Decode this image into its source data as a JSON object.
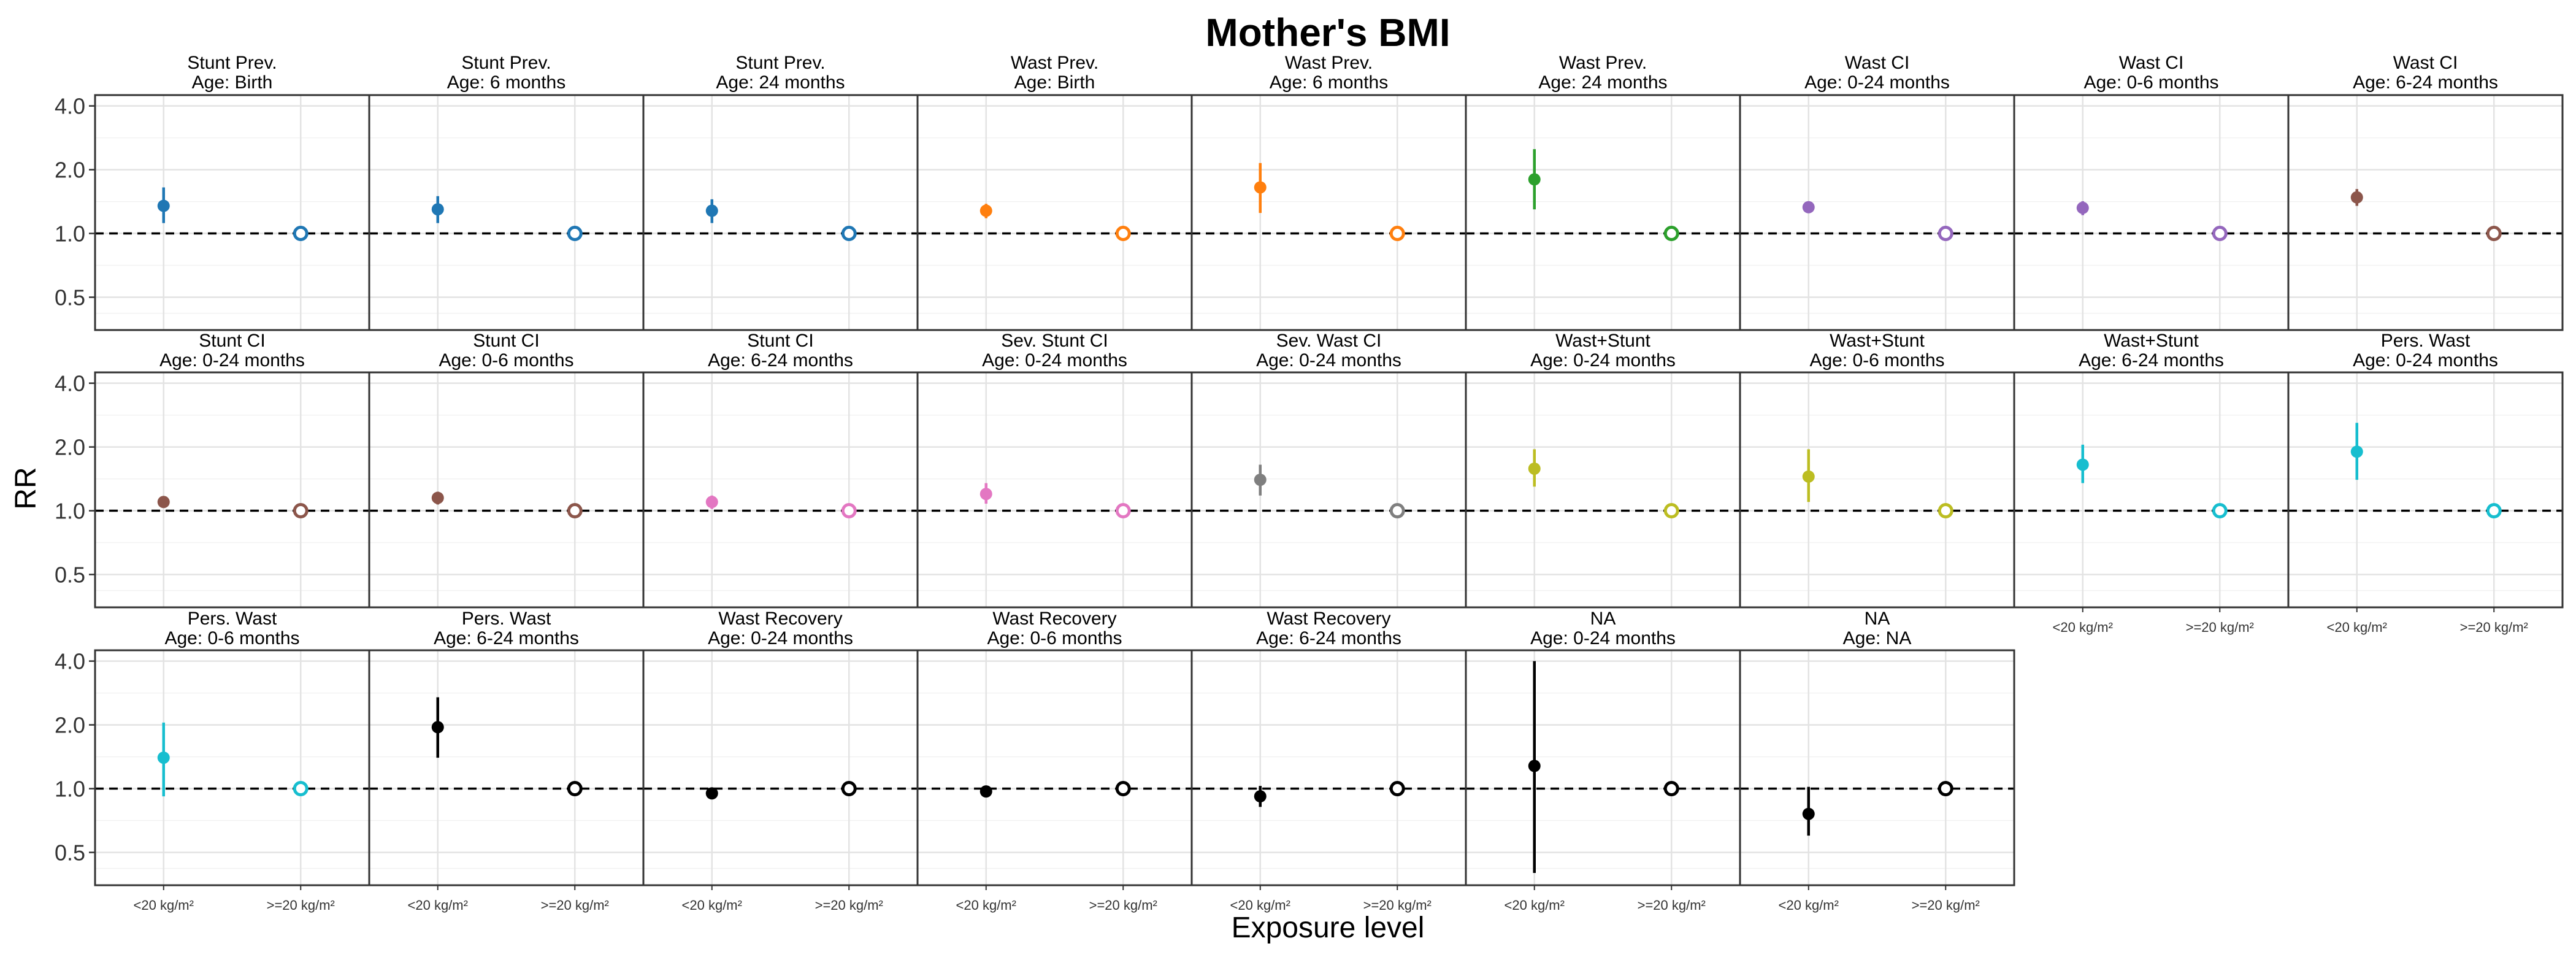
{
  "chart_data": {
    "type": "scatter",
    "title": "Mother's BMI",
    "xlabel": "Exposure level",
    "ylabel": "RR",
    "y_scale": "log",
    "ylim": [
      0.35,
      4.5
    ],
    "yticks": [
      0.5,
      1.0,
      2.0,
      4.0
    ],
    "ytick_labels": [
      "0.5",
      "1.0",
      "2.0",
      "4.0"
    ],
    "reference_line": 1.0,
    "categories": [
      "<20 kg/m²",
      ">=20 kg/m²"
    ],
    "grid": true,
    "panels": [
      {
        "strip": [
          "Stunt Prev.",
          "Age: Birth"
        ],
        "color": "#1F77B4",
        "rr": 1.35,
        "lo": 1.12,
        "hi": 1.65
      },
      {
        "strip": [
          "Stunt Prev.",
          "Age: 6 months"
        ],
        "color": "#1F77B4",
        "rr": 1.3,
        "lo": 1.12,
        "hi": 1.5
      },
      {
        "strip": [
          "Stunt Prev.",
          "Age: 24 months"
        ],
        "color": "#1F77B4",
        "rr": 1.28,
        "lo": 1.12,
        "hi": 1.45
      },
      {
        "strip": [
          "Wast Prev.",
          "Age: Birth"
        ],
        "color": "#FF7F0E",
        "rr": 1.28,
        "lo": 1.18,
        "hi": 1.38
      },
      {
        "strip": [
          "Wast Prev.",
          "Age: 6 months"
        ],
        "color": "#FF7F0E",
        "rr": 1.65,
        "lo": 1.25,
        "hi": 2.15
      },
      {
        "strip": [
          "Wast Prev.",
          "Age: 24 months"
        ],
        "color": "#2CA02C",
        "rr": 1.8,
        "lo": 1.3,
        "hi": 2.5
      },
      {
        "strip": [
          "Wast CI",
          "Age: 0-24 months"
        ],
        "color": "#9467BD",
        "rr": 1.33,
        "lo": 1.25,
        "hi": 1.42
      },
      {
        "strip": [
          "Wast CI",
          "Age: 0-6 months"
        ],
        "color": "#9467BD",
        "rr": 1.32,
        "lo": 1.22,
        "hi": 1.42
      },
      {
        "strip": [
          "Wast CI",
          "Age: 6-24 months"
        ],
        "color": "#8C564B",
        "rr": 1.48,
        "lo": 1.35,
        "hi": 1.62
      },
      {
        "strip": [
          "Stunt CI",
          "Age: 0-24 months"
        ],
        "color": "#8C564B",
        "rr": 1.1,
        "lo": 1.06,
        "hi": 1.14
      },
      {
        "strip": [
          "Stunt CI",
          "Age: 0-6 months"
        ],
        "color": "#8C564B",
        "rr": 1.15,
        "lo": 1.07,
        "hi": 1.23
      },
      {
        "strip": [
          "Stunt CI",
          "Age: 6-24 months"
        ],
        "color": "#E377C2",
        "rr": 1.1,
        "lo": 1.02,
        "hi": 1.18
      },
      {
        "strip": [
          "Sev. Stunt CI",
          "Age: 0-24 months"
        ],
        "color": "#E377C2",
        "rr": 1.2,
        "lo": 1.08,
        "hi": 1.35
      },
      {
        "strip": [
          "Sev. Wast CI",
          "Age: 0-24 months"
        ],
        "color": "#7F7F7F",
        "rr": 1.4,
        "lo": 1.18,
        "hi": 1.65
      },
      {
        "strip": [
          "Wast+Stunt",
          "Age: 0-24 months"
        ],
        "color": "#BCBD22",
        "rr": 1.58,
        "lo": 1.3,
        "hi": 1.95
      },
      {
        "strip": [
          "Wast+Stunt",
          "Age: 0-6 months"
        ],
        "color": "#BCBD22",
        "rr": 1.45,
        "lo": 1.1,
        "hi": 1.95
      },
      {
        "strip": [
          "Wast+Stunt",
          "Age: 6-24 months"
        ],
        "color": "#17BECF",
        "rr": 1.65,
        "lo": 1.35,
        "hi": 2.05
      },
      {
        "strip": [
          "Pers. Wast",
          "Age: 0-24 months"
        ],
        "color": "#17BECF",
        "rr": 1.9,
        "lo": 1.4,
        "hi": 2.6
      },
      {
        "strip": [
          "Pers. Wast",
          "Age: 0-6 months"
        ],
        "color": "#17BECF",
        "rr": 1.4,
        "lo": 0.92,
        "hi": 2.05
      },
      {
        "strip": [
          "Pers. Wast",
          "Age: 6-24 months"
        ],
        "color": "#000000",
        "rr": 1.95,
        "lo": 1.4,
        "hi": 2.7
      },
      {
        "strip": [
          "Wast Recovery",
          "Age: 0-24 months"
        ],
        "color": "#000000",
        "rr": 0.95,
        "lo": 0.92,
        "hi": 0.98
      },
      {
        "strip": [
          "Wast Recovery",
          "Age: 0-6 months"
        ],
        "color": "#000000",
        "rr": 0.97,
        "lo": 0.94,
        "hi": 1.0
      },
      {
        "strip": [
          "Wast Recovery",
          "Age: 6-24 months"
        ],
        "color": "#000000",
        "rr": 0.92,
        "lo": 0.82,
        "hi": 1.03
      },
      {
        "strip": [
          "NA",
          "Age: 0-24 months"
        ],
        "color": "#000000",
        "rr": 1.28,
        "lo": 0.4,
        "hi": 4.0
      },
      {
        "strip": [
          "NA",
          "Age: NA"
        ],
        "color": "#000000",
        "rr": 0.76,
        "lo": 0.6,
        "hi": 1.02
      }
    ]
  }
}
